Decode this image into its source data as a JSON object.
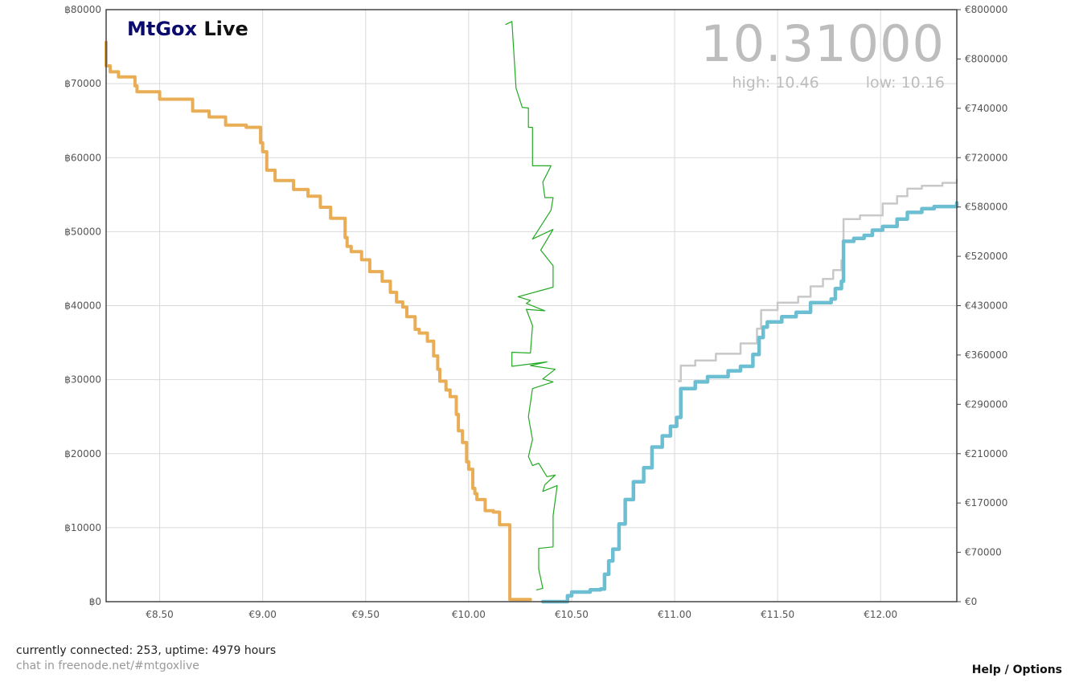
{
  "header": {
    "brand_main": "MtGox",
    "brand_sub": "Live",
    "price": "10.31000",
    "high_label": "high: 10.46",
    "low_label": "low: 10.16"
  },
  "footer": {
    "status": "currently connected: 253, uptime: 4979 hours",
    "chat_prefix": "chat in",
    "chat_link": "freenode.net/#mtgoxlive",
    "help": "Help / Options"
  },
  "colors": {
    "bids": "#e8ad55",
    "asks": "#6cbfd2",
    "asks_outline": "#c8c8c8",
    "price_history": "#22aa22",
    "grid": "#d9d9d9"
  },
  "chart_data": {
    "type": "area",
    "title": "",
    "xlabel": "",
    "ylabel": "",
    "x_ticks": [
      "€8.50",
      "€9.00",
      "€9.50",
      "€10.00",
      "€10.50",
      "€11.00",
      "€11.50",
      "€12.00"
    ],
    "x_tick_values": [
      8.5,
      9.0,
      9.5,
      10.0,
      10.5,
      11.0,
      11.5,
      12.0
    ],
    "xlim": [
      8.24,
      12.37
    ],
    "y_left_ticks": [
      "฿0",
      "฿10000",
      "฿20000",
      "฿30000",
      "฿40000",
      "฿50000",
      "฿60000",
      "฿70000",
      "฿80000"
    ],
    "y_left_tick_values": [
      0,
      10000,
      20000,
      30000,
      40000,
      50000,
      60000,
      70000,
      80000
    ],
    "ylim": [
      0,
      80000
    ],
    "y_right_ticks": [
      "€0",
      "€70000",
      "€170000",
      "€210000",
      "€290000",
      "€360000",
      "€430000",
      "€520000",
      "€580000",
      "€720000",
      "€740000",
      "€800000",
      "€800000"
    ],
    "grid": true,
    "series": [
      {
        "name": "bids",
        "points": [
          [
            10.3,
            300
          ],
          [
            10.2,
            500
          ],
          [
            10.2,
            10400
          ],
          [
            10.15,
            10700
          ],
          [
            10.15,
            12100
          ],
          [
            10.12,
            12300
          ],
          [
            10.08,
            13800
          ],
          [
            10.04,
            14600
          ],
          [
            10.03,
            15300
          ],
          [
            10.02,
            17900
          ],
          [
            10.0,
            18900
          ],
          [
            9.99,
            21500
          ],
          [
            9.97,
            23100
          ],
          [
            9.95,
            25300
          ],
          [
            9.94,
            27700
          ],
          [
            9.91,
            28600
          ],
          [
            9.89,
            29800
          ],
          [
            9.86,
            31400
          ],
          [
            9.85,
            33200
          ],
          [
            9.83,
            35200
          ],
          [
            9.8,
            36300
          ],
          [
            9.76,
            36800
          ],
          [
            9.74,
            38500
          ],
          [
            9.7,
            39800
          ],
          [
            9.68,
            40500
          ],
          [
            9.65,
            41800
          ],
          [
            9.62,
            43300
          ],
          [
            9.58,
            44600
          ],
          [
            9.52,
            46200
          ],
          [
            9.48,
            47300
          ],
          [
            9.43,
            48000
          ],
          [
            9.41,
            49200
          ],
          [
            9.4,
            51800
          ],
          [
            9.33,
            53300
          ],
          [
            9.28,
            54800
          ],
          [
            9.22,
            55700
          ],
          [
            9.15,
            56900
          ],
          [
            9.06,
            58300
          ],
          [
            9.02,
            60800
          ],
          [
            9.0,
            62000
          ],
          [
            8.99,
            64100
          ],
          [
            8.92,
            64400
          ],
          [
            8.82,
            65500
          ],
          [
            8.74,
            66300
          ],
          [
            8.66,
            67900
          ],
          [
            8.5,
            68900
          ],
          [
            8.39,
            69700
          ],
          [
            8.38,
            70900
          ],
          [
            8.3,
            71600
          ],
          [
            8.26,
            72400
          ],
          [
            8.24,
            75600
          ]
        ]
      },
      {
        "name": "asks",
        "points": [
          [
            10.36,
            0
          ],
          [
            10.48,
            800
          ],
          [
            10.5,
            1300
          ],
          [
            10.59,
            1600
          ],
          [
            10.64,
            1700
          ],
          [
            10.66,
            3700
          ],
          [
            10.68,
            5500
          ],
          [
            10.7,
            7100
          ],
          [
            10.73,
            10500
          ],
          [
            10.76,
            13800
          ],
          [
            10.8,
            16200
          ],
          [
            10.85,
            18100
          ],
          [
            10.89,
            20900
          ],
          [
            10.94,
            22400
          ],
          [
            10.98,
            23700
          ],
          [
            11.01,
            24900
          ],
          [
            11.03,
            28800
          ],
          [
            11.1,
            29700
          ],
          [
            11.16,
            30400
          ],
          [
            11.26,
            31200
          ],
          [
            11.32,
            31800
          ],
          [
            11.38,
            33400
          ],
          [
            11.41,
            35700
          ],
          [
            11.43,
            37100
          ],
          [
            11.45,
            37800
          ],
          [
            11.52,
            38500
          ],
          [
            11.59,
            39100
          ],
          [
            11.66,
            40400
          ],
          [
            11.76,
            40900
          ],
          [
            11.78,
            42300
          ],
          [
            11.81,
            43300
          ],
          [
            11.82,
            48700
          ],
          [
            11.87,
            49100
          ],
          [
            11.92,
            49500
          ],
          [
            11.96,
            50200
          ],
          [
            12.01,
            50700
          ],
          [
            12.08,
            51700
          ],
          [
            12.13,
            52600
          ],
          [
            12.2,
            53100
          ],
          [
            12.26,
            53400
          ],
          [
            12.37,
            53900
          ]
        ]
      },
      {
        "name": "asks_outline",
        "points": [
          [
            11.02,
            29800
          ],
          [
            11.03,
            31900
          ],
          [
            11.1,
            32600
          ],
          [
            11.2,
            33500
          ],
          [
            11.32,
            34900
          ],
          [
            11.4,
            36900
          ],
          [
            11.42,
            39400
          ],
          [
            11.5,
            40400
          ],
          [
            11.6,
            41200
          ],
          [
            11.66,
            42600
          ],
          [
            11.72,
            43600
          ],
          [
            11.77,
            44800
          ],
          [
            11.81,
            46100
          ],
          [
            11.82,
            51700
          ],
          [
            11.9,
            52200
          ],
          [
            12.01,
            53800
          ],
          [
            12.08,
            54800
          ],
          [
            12.13,
            55800
          ],
          [
            12.2,
            56200
          ],
          [
            12.3,
            56600
          ],
          [
            12.37,
            57000
          ]
        ]
      },
      {
        "name": "price_history",
        "points": [
          [
            10.18,
            78000
          ],
          [
            10.21,
            78400
          ],
          [
            10.23,
            69400
          ],
          [
            10.26,
            66800
          ],
          [
            10.29,
            66700
          ],
          [
            10.29,
            64100
          ],
          [
            10.31,
            64100
          ],
          [
            10.31,
            58900
          ],
          [
            10.4,
            58900
          ],
          [
            10.36,
            56700
          ],
          [
            10.37,
            54600
          ],
          [
            10.41,
            54600
          ],
          [
            10.4,
            52900
          ],
          [
            10.31,
            49000
          ],
          [
            10.41,
            50300
          ],
          [
            10.35,
            47500
          ],
          [
            10.41,
            45400
          ],
          [
            10.41,
            42500
          ],
          [
            10.24,
            41200
          ],
          [
            10.3,
            40700
          ],
          [
            10.28,
            40300
          ],
          [
            10.37,
            39300
          ],
          [
            10.28,
            39500
          ],
          [
            10.31,
            37300
          ],
          [
            10.3,
            33600
          ],
          [
            10.21,
            33700
          ],
          [
            10.21,
            32500
          ],
          [
            10.21,
            31800
          ],
          [
            10.38,
            32400
          ],
          [
            10.3,
            31900
          ],
          [
            10.42,
            31400
          ],
          [
            10.36,
            30100
          ],
          [
            10.41,
            29700
          ],
          [
            10.31,
            28800
          ],
          [
            10.29,
            25000
          ],
          [
            10.31,
            21900
          ],
          [
            10.29,
            19600
          ],
          [
            10.31,
            18400
          ],
          [
            10.34,
            18700
          ],
          [
            10.38,
            16900
          ],
          [
            10.42,
            17100
          ],
          [
            10.37,
            15800
          ],
          [
            10.36,
            14900
          ],
          [
            10.43,
            15700
          ],
          [
            10.41,
            11600
          ],
          [
            10.41,
            7400
          ],
          [
            10.34,
            7200
          ],
          [
            10.34,
            4400
          ],
          [
            10.36,
            1800
          ],
          [
            10.33,
            1600
          ]
        ]
      }
    ]
  }
}
